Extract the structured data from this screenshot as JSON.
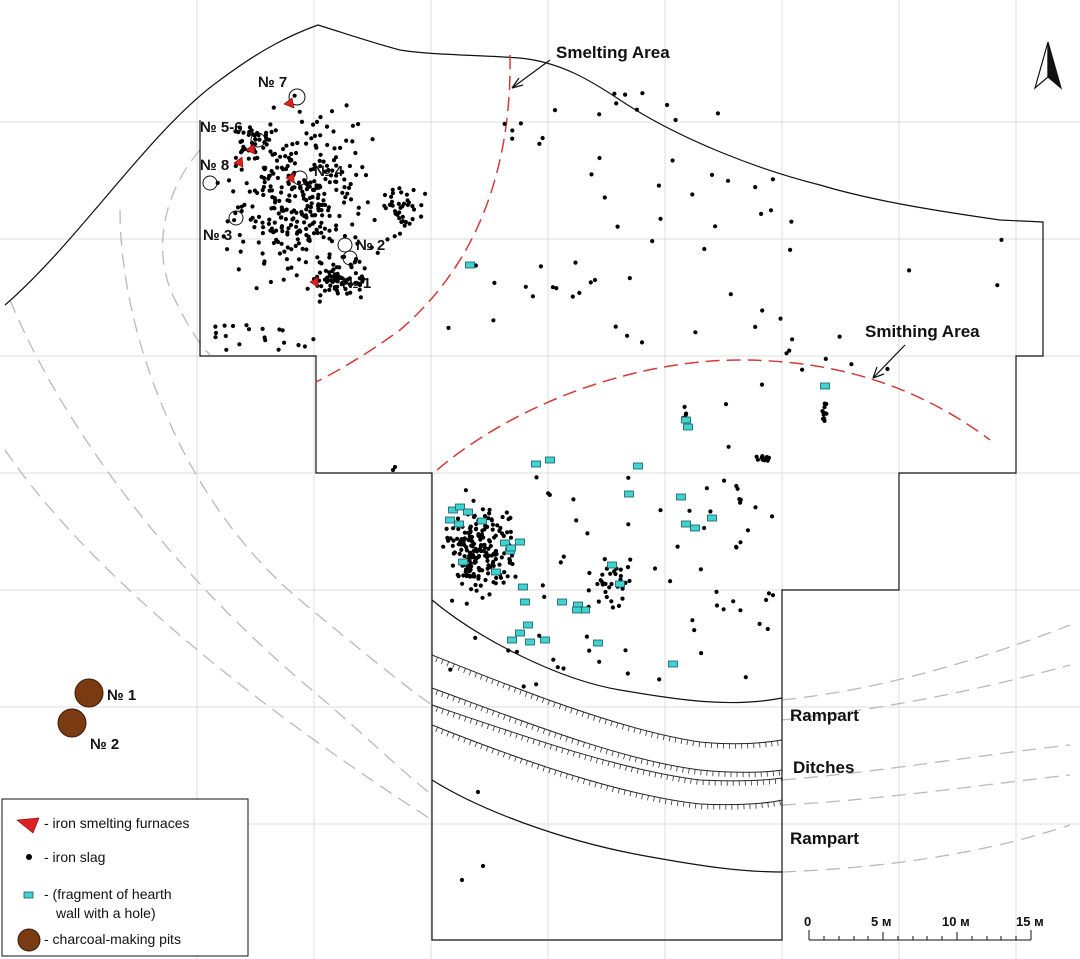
{
  "area_labels": {
    "smelting": "Smelting Area",
    "smithing": "Smithing Area"
  },
  "furnace_labels": {
    "f1": "№ 1",
    "f2": "№ 2",
    "f3": "№ 3",
    "f4": "№ 4",
    "f56": "№ 5-6",
    "f7": "№ 7",
    "f8": "№ 8"
  },
  "pit_labels": {
    "p1": "№ 1",
    "p2": "№ 2"
  },
  "feature_labels": {
    "rampart_upper": "Rampart",
    "ditches": "Ditches",
    "rampart_lower": "Rampart"
  },
  "legend": {
    "furnace": "- iron smelting furnaces",
    "slag": "-  iron slag",
    "hearth_line1": "- (fragment of hearth",
    "hearth_line2": "wall with a hole)",
    "pits": "- charcoal-making pits"
  },
  "scale_bar": {
    "ticks": [
      "0",
      "5 м",
      "10 м",
      "15 м"
    ]
  },
  "colors": {
    "furnace": "#e02020",
    "slag": "#000000",
    "hearth": "#3fd3d3",
    "pit": "#7a3b12",
    "area_boundary": "#d43a3a",
    "grid": "#d7d7d7"
  }
}
